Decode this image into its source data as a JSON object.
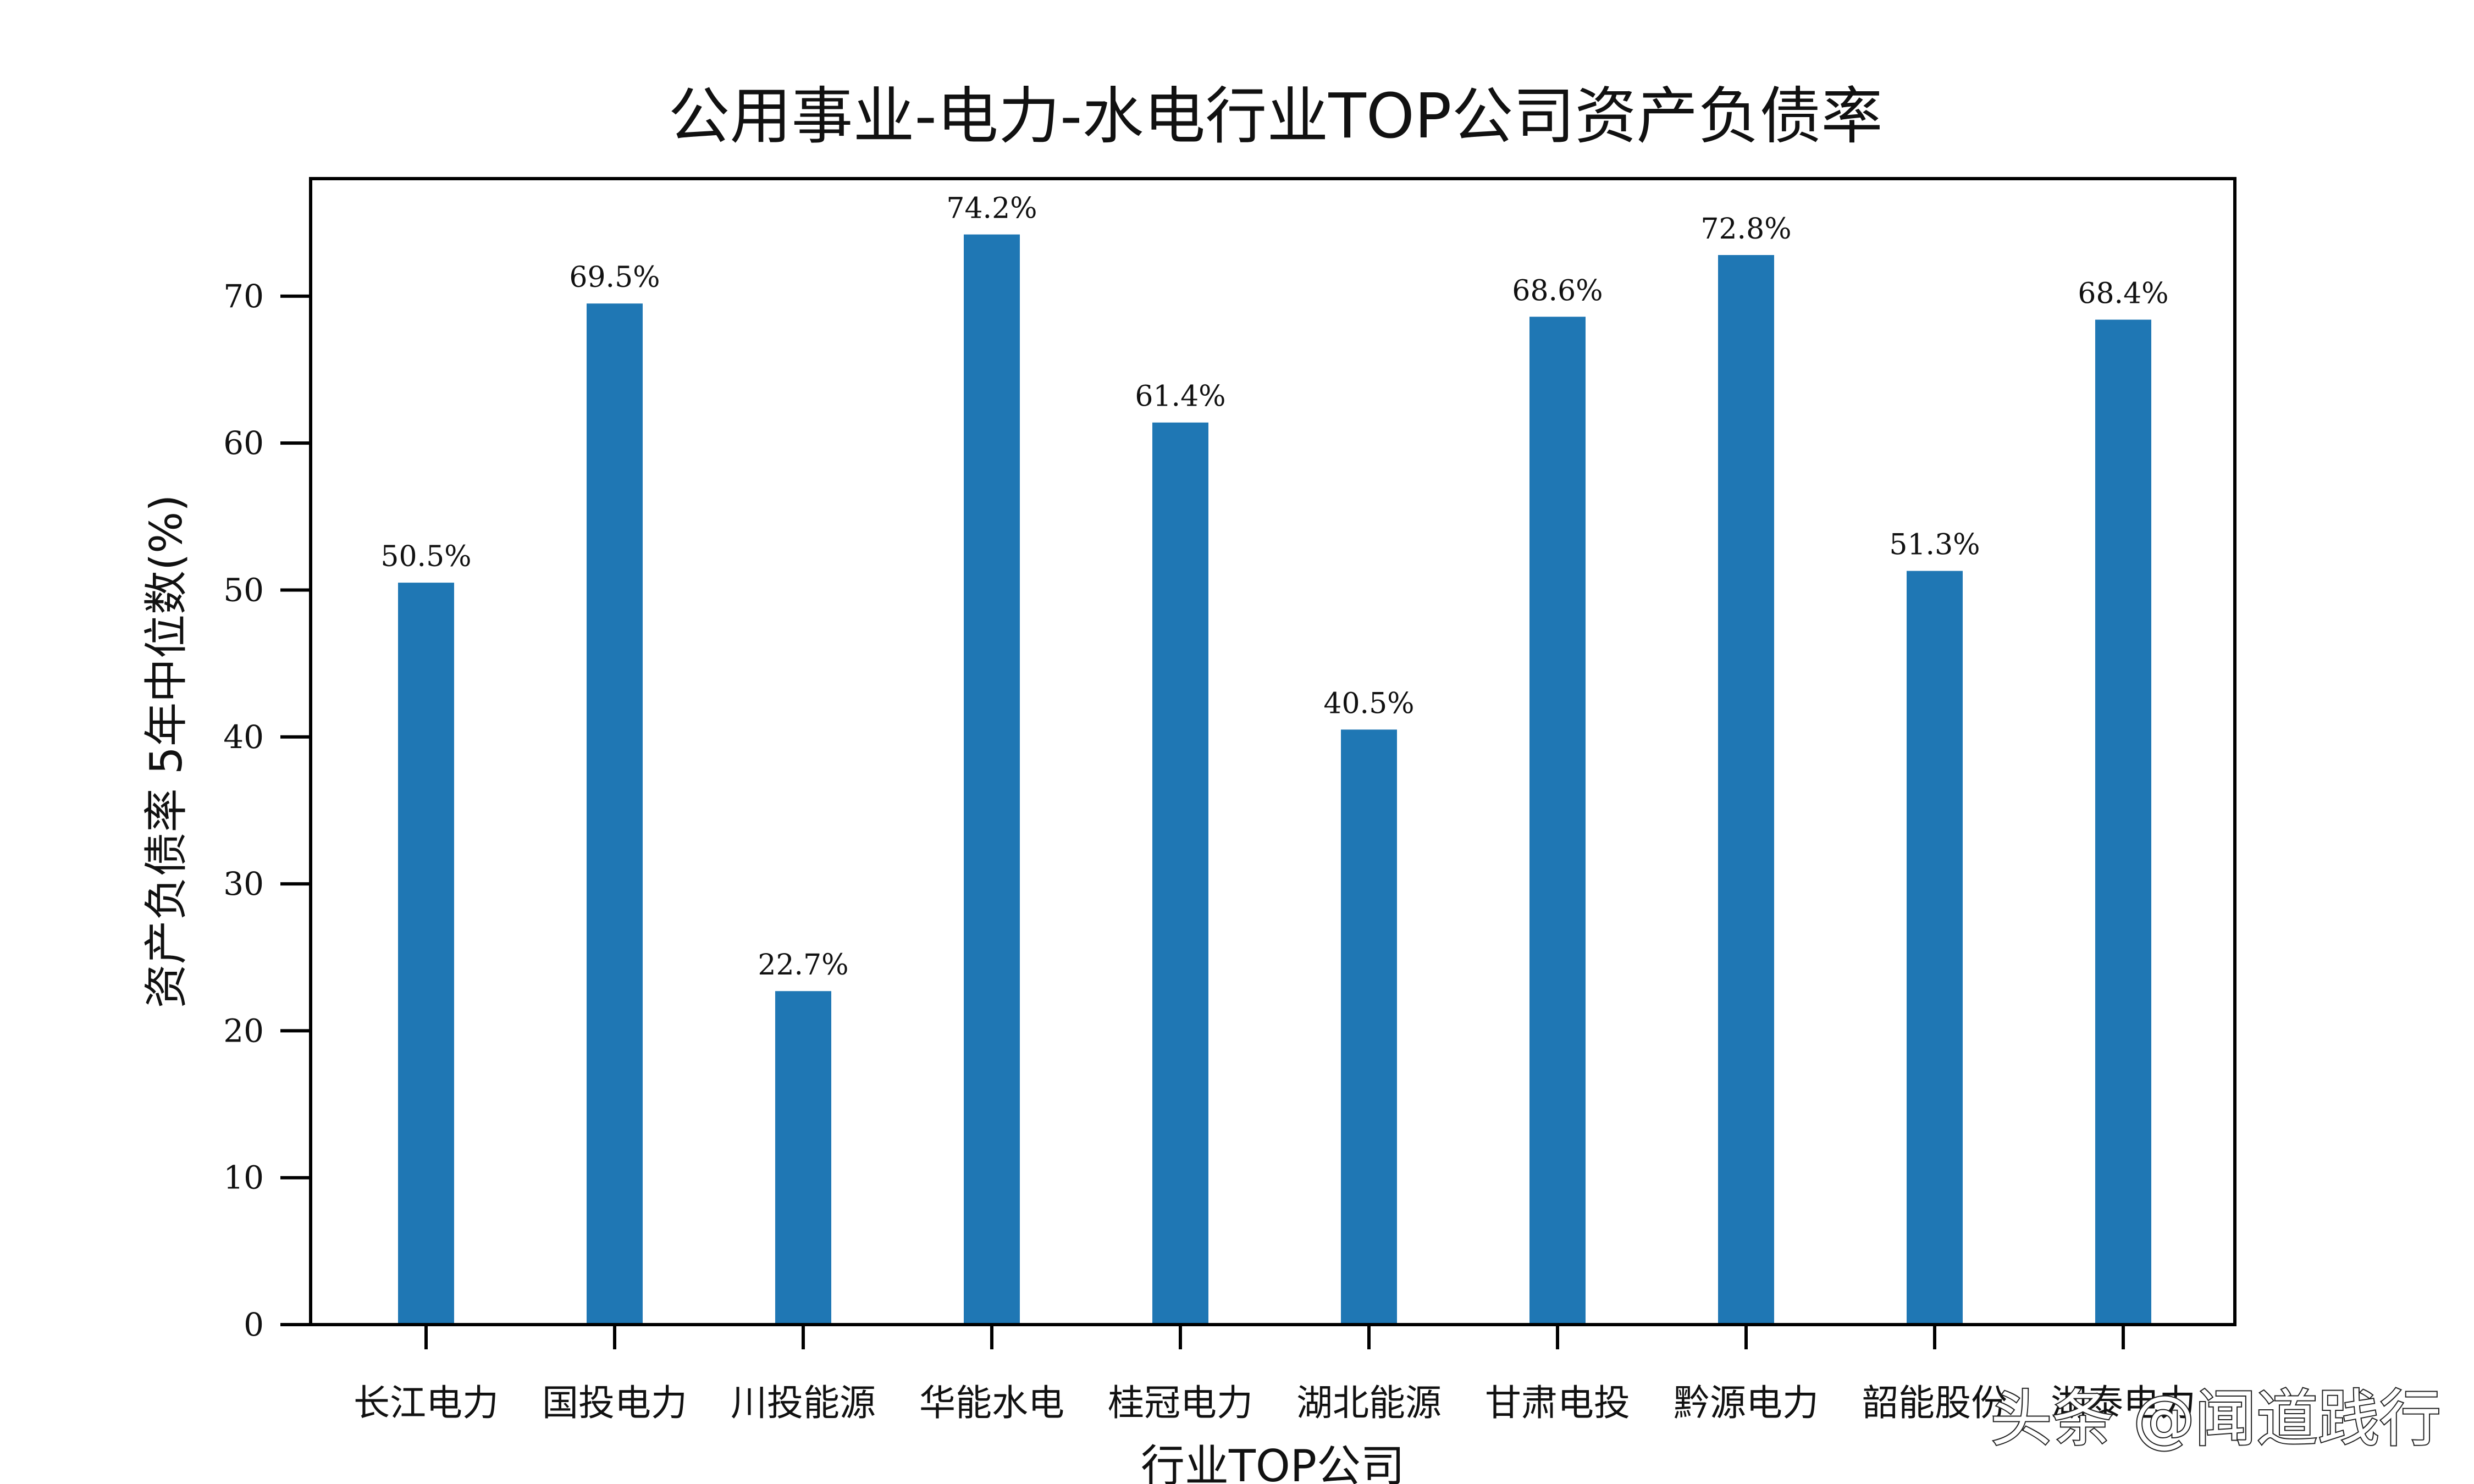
{
  "chart_data": {
    "type": "bar",
    "title": "公用事业-电力-水电行业TOP公司资产负债率",
    "xlabel": "行业TOP公司",
    "ylabel": "资产负债率 5年中位数(%)",
    "categories": [
      "长江电力",
      "国投电力",
      "川投能源",
      "华能水电",
      "桂冠电力",
      "湖北能源",
      "甘肃电投",
      "黔源电力",
      "韶能股份",
      "湖泰电力"
    ],
    "values": [
      50.5,
      69.5,
      22.7,
      74.2,
      61.4,
      40.5,
      68.6,
      72.8,
      51.3,
      68.4
    ],
    "data_labels": [
      "50.5%",
      "69.5%",
      "22.7%",
      "74.2%",
      "61.4%",
      "40.5%",
      "68.6%",
      "72.8%",
      "51.3%",
      "68.4%"
    ],
    "ylim": [
      0,
      78
    ],
    "yticks": [
      0,
      10,
      20,
      30,
      40,
      50,
      60,
      70
    ],
    "bar_color": "#1f77b4",
    "grid": false
  },
  "watermark": "头条 @闻道践行"
}
